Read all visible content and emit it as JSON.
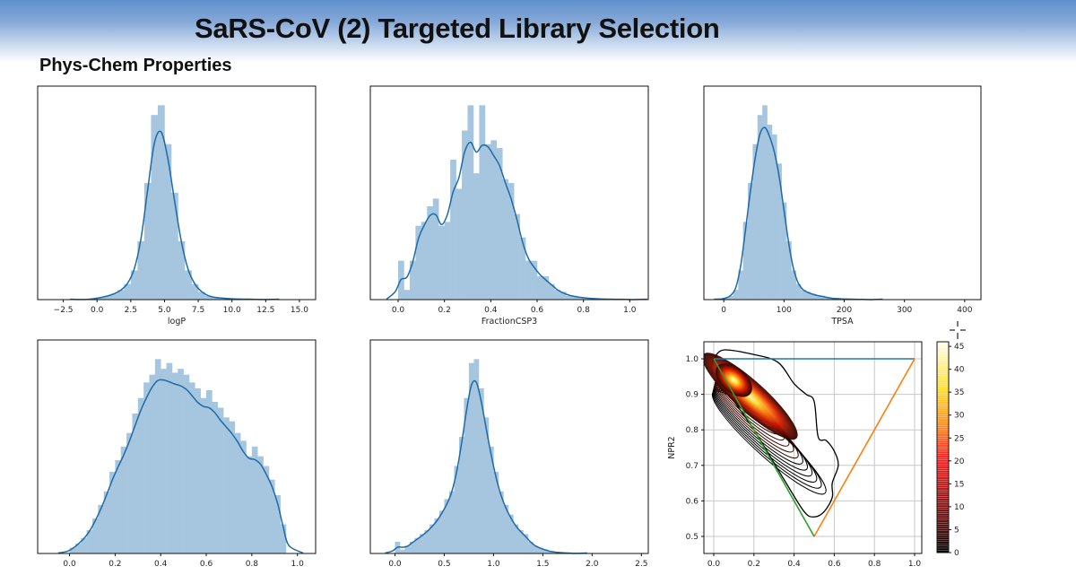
{
  "slide": {
    "title": "SaRS-CoV (2) Targeted Library Selection",
    "subtitle": "Phys-Chem Properties"
  },
  "colors": {
    "bar": "#a6c6e0",
    "kde": "#1f6aa5",
    "blue_line": "#1f77b4",
    "orange_line": "#ff7f0e",
    "green_line": "#2ca02c"
  },
  "chart_data": [
    {
      "type": "bar",
      "xlabel": "logP",
      "xlim": [
        -4.4,
        16.2
      ],
      "ticks": [
        -2.5,
        0.0,
        2.5,
        5.0,
        7.5,
        10.0,
        12.5,
        15.0
      ],
      "tick_labels": [
        "−2.5",
        "0.0",
        "2.5",
        "5.0",
        "7.5",
        "10.0",
        "12.5",
        "15.0"
      ],
      "bin_start": -1,
      "bin_width": 0.5,
      "values": [
        0,
        0.005,
        0.01,
        0.02,
        0.03,
        0.05,
        0.08,
        0.15,
        0.3,
        0.6,
        0.95,
        1.0,
        0.8,
        0.55,
        0.3,
        0.15,
        0.08,
        0.04,
        0.02,
        0.01,
        0.01,
        0.005,
        0.003,
        0.003,
        0.002,
        0.002
      ]
    },
    {
      "type": "bar",
      "xlabel": "FractionCSP3",
      "xlim": [
        -0.12,
        1.08
      ],
      "ticks": [
        0,
        0.2,
        0.4,
        0.6,
        0.8,
        1.0
      ],
      "tick_labels": [
        "0.0",
        "0.2",
        "0.4",
        "0.6",
        "0.8",
        "1.0"
      ],
      "bin_start": 0,
      "bin_width": 0.025,
      "values": [
        0.2,
        0.05,
        0.2,
        0.38,
        0.4,
        0.48,
        0.52,
        0.38,
        0.4,
        0.72,
        0.57,
        0.87,
        1.0,
        0.65,
        1.0,
        0.8,
        0.82,
        0.78,
        0.62,
        0.6,
        0.44,
        0.32,
        0.2,
        0.2,
        0.12,
        0.12,
        0.08,
        0.05,
        0.04,
        0.02,
        0.02,
        0.01,
        0.01,
        0.005,
        0.005,
        0.003,
        0.002,
        0.002,
        0.002,
        0.001
      ]
    },
    {
      "type": "bar",
      "xlabel": "TPSA",
      "xlim": [
        -33,
        427
      ],
      "ticks": [
        0,
        100,
        200,
        300,
        400
      ],
      "tick_labels": [
        "0",
        "100",
        "200",
        "300",
        "400"
      ],
      "bin_start": 0,
      "bin_width": 8,
      "values": [
        0.01,
        0.02,
        0.05,
        0.15,
        0.4,
        0.6,
        0.8,
        0.95,
        1.0,
        0.9,
        0.85,
        0.7,
        0.5,
        0.3,
        0.15,
        0.08,
        0.05,
        0.04,
        0.03,
        0.02,
        0.02,
        0.01,
        0.008,
        0.005,
        0.004,
        0.003,
        0.002,
        0.002,
        0.001,
        0.001
      ]
    },
    {
      "type": "bar",
      "xlabel": "",
      "xlim": [
        -0.14,
        1.08
      ],
      "ticks": [
        0,
        0.2,
        0.4,
        0.6,
        0.8,
        1.0
      ],
      "tick_labels": [
        "0.0",
        "0.2",
        "0.4",
        "0.6",
        "0.8",
        "1.0"
      ],
      "bin_start": 0,
      "bin_width": 0.025,
      "values": [
        0.03,
        0.05,
        0.08,
        0.12,
        0.18,
        0.25,
        0.32,
        0.42,
        0.48,
        0.55,
        0.62,
        0.72,
        0.8,
        0.88,
        0.92,
        1.0,
        0.95,
        0.98,
        0.93,
        0.95,
        0.92,
        0.88,
        0.85,
        0.8,
        0.84,
        0.78,
        0.75,
        0.7,
        0.68,
        0.62,
        0.58,
        0.5,
        0.55,
        0.5,
        0.45,
        0.38,
        0.3,
        0.15
      ]
    },
    {
      "type": "bar",
      "xlabel": "",
      "xlim": [
        -0.25,
        2.57
      ],
      "ticks": [
        0,
        0.5,
        1.0,
        1.5,
        2.0,
        2.5
      ],
      "tick_labels": [
        "0.0",
        "0.5",
        "1.0",
        "1.5",
        "2.0",
        "2.5"
      ],
      "bin_start": 0,
      "bin_width": 0.05,
      "values": [
        0.06,
        0.02,
        0.04,
        0.06,
        0.08,
        0.1,
        0.12,
        0.15,
        0.18,
        0.22,
        0.28,
        0.32,
        0.45,
        0.6,
        0.8,
        0.98,
        1.0,
        0.85,
        0.7,
        0.55,
        0.42,
        0.32,
        0.25,
        0.2,
        0.15,
        0.12,
        0.1,
        0.06,
        0.04,
        0.03,
        0.02,
        0.01,
        0.008,
        0.005,
        0.003,
        0.002
      ]
    },
    {
      "type": "heatmap",
      "xlabel": "",
      "ylabel": "NPR2",
      "xlim": [
        -0.05,
        1.05
      ],
      "ylim": [
        0.45,
        1.05
      ],
      "xticks": [
        0,
        0.2,
        0.4,
        0.6,
        0.8,
        1.0
      ],
      "xtick_labels": [
        "0.0",
        "0.2",
        "0.4",
        "0.6",
        "0.8",
        "1.0"
      ],
      "yticks": [
        0.5,
        0.6,
        0.7,
        0.8,
        0.9,
        1.0
      ],
      "ytick_labels": [
        "0.5",
        "0.6",
        "0.7",
        "0.8",
        "0.9",
        "1.0"
      ],
      "grid": true,
      "density_peak": [
        0.1,
        0.94
      ],
      "lines": [
        {
          "color": "blue",
          "points": [
            [
              0,
              1
            ],
            [
              1,
              1
            ]
          ]
        },
        {
          "color": "orange",
          "points": [
            [
              0.5,
              0.5
            ],
            [
              1,
              1
            ]
          ]
        },
        {
          "color": "green",
          "points": [
            [
              0,
              1
            ],
            [
              0.5,
              0.5
            ]
          ]
        }
      ],
      "colorbar": {
        "range": [
          0,
          46
        ],
        "ticks": [
          0,
          5,
          10,
          15,
          20,
          25,
          30,
          35,
          40,
          45
        ],
        "tick_labels": [
          "0",
          "5",
          "10",
          "15",
          "20",
          "25",
          "30",
          "35",
          "40",
          "45"
        ]
      }
    }
  ]
}
